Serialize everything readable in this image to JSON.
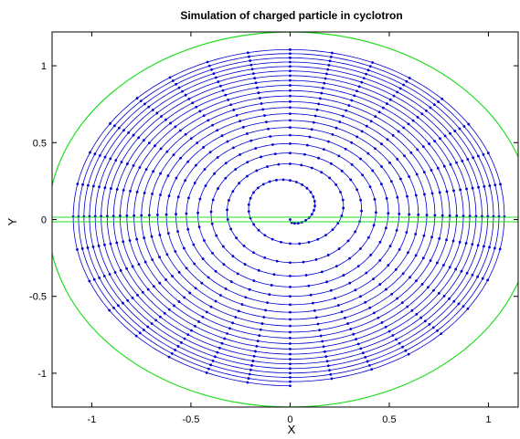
{
  "chart_data": {
    "type": "line",
    "title": "Simulation of charged particle in cyclotron",
    "xlabel": "X",
    "ylabel": "Y",
    "xlim": [
      -1.2,
      1.15
    ],
    "ylim": [
      -1.22,
      1.22
    ],
    "xticks": [
      -1,
      -0.5,
      0,
      0.5,
      1
    ],
    "xtick_labels": [
      "-1",
      "-0.5",
      "0",
      "0.5",
      "1"
    ],
    "yticks": [
      -1,
      -0.5,
      0,
      0.5,
      1
    ],
    "ytick_labels": [
      "-1",
      "-0.5",
      "0",
      "0.5",
      "1"
    ],
    "grid": false,
    "legend": "none",
    "series": [
      {
        "kind": "spiral-trajectory",
        "color": "#0000d0",
        "marker": "dot",
        "start": [
          0,
          0
        ],
        "turns": 21,
        "final_radius": 1.1,
        "markers_per_turn": 64
      },
      {
        "kind": "dee-boundary-circle",
        "color": "#22dd22",
        "center": [
          0,
          0
        ],
        "radius": 1.22
      },
      {
        "kind": "dee-gap",
        "color": "#22dd22",
        "y_values": [
          -0.015,
          0.015
        ]
      }
    ]
  }
}
